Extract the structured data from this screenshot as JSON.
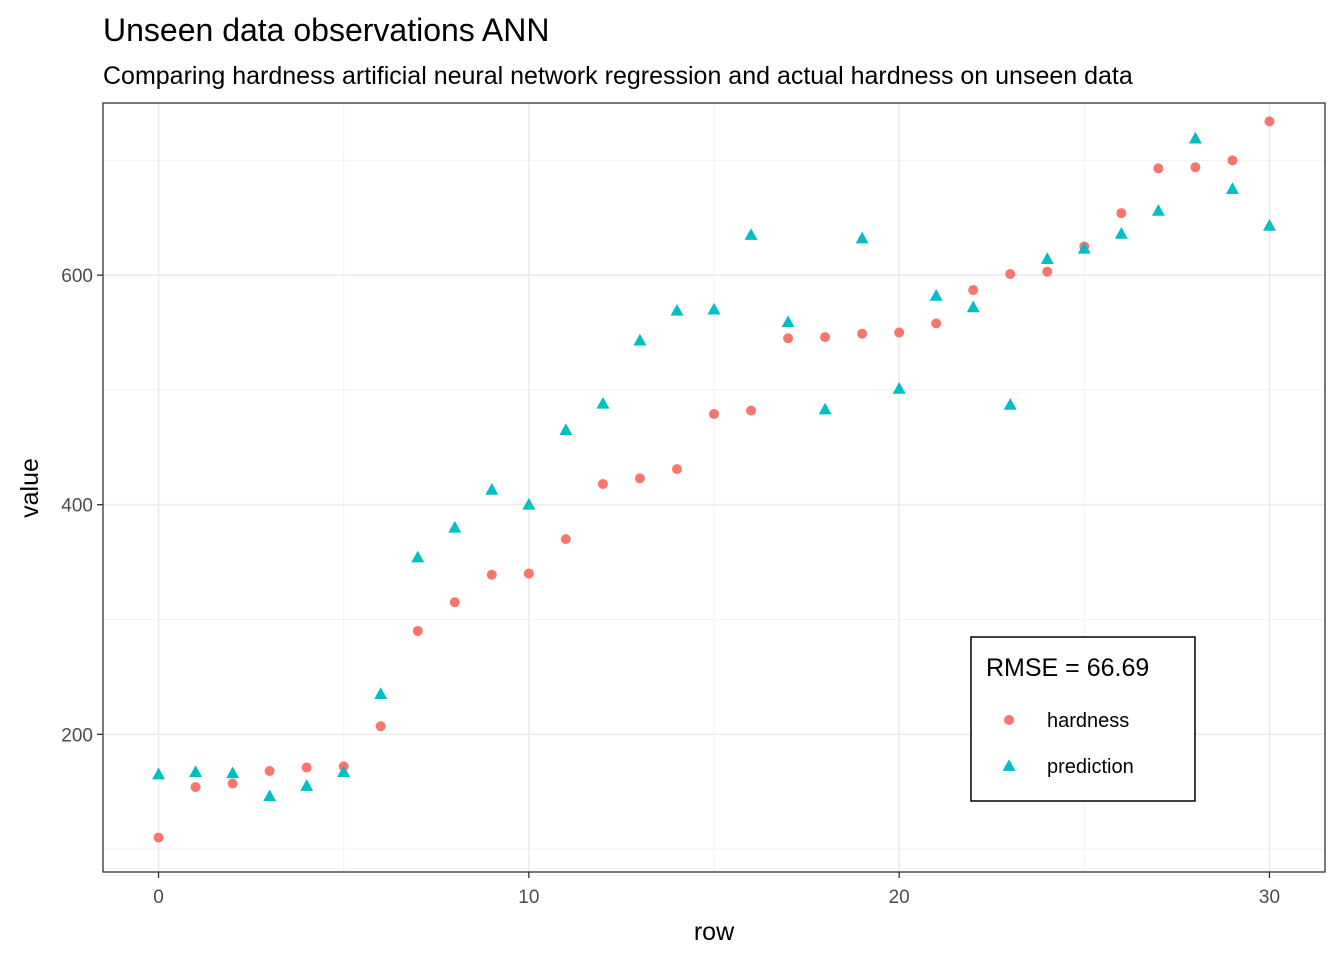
{
  "chart_data": {
    "type": "scatter",
    "title": "Unseen data observations ANN",
    "subtitle": "Comparing hardness artificial neural network regression and actual hardness on unseen data",
    "xlabel": "row",
    "ylabel": "value",
    "xlim": [
      -1.5,
      31.5
    ],
    "ylim": [
      80,
      750
    ],
    "x_ticks": [
      0,
      10,
      20,
      30
    ],
    "y_ticks": [
      200,
      400,
      600
    ],
    "y_minor_ticks": [
      100,
      300,
      500,
      700
    ],
    "x_minor_ticks": [
      5,
      15,
      25
    ],
    "grid": true,
    "legend_position": "bottom-right inside",
    "legend_title": "RMSE =  66.69",
    "x": [
      0,
      1,
      2,
      3,
      4,
      5,
      6,
      7,
      8,
      9,
      10,
      11,
      12,
      13,
      14,
      15,
      16,
      17,
      18,
      19,
      20,
      21,
      22,
      23,
      24,
      25,
      26,
      27,
      28,
      29,
      30
    ],
    "series": [
      {
        "name": "hardness",
        "marker": "circle",
        "color": "#F8766D",
        "values": [
          110,
          154,
          157,
          168,
          171,
          172,
          207,
          290,
          315,
          339,
          340,
          370,
          418,
          423,
          431,
          479,
          482,
          545,
          546,
          549,
          550,
          558,
          587,
          601,
          603,
          625,
          654,
          693,
          694,
          700,
          734
        ]
      },
      {
        "name": "prediction",
        "marker": "triangle",
        "color": "#00BFC4",
        "values": [
          165,
          167,
          166,
          146,
          155,
          167,
          235,
          354,
          380,
          413,
          400,
          465,
          488,
          543,
          569,
          570,
          635,
          559,
          483,
          632,
          501,
          582,
          572,
          487,
          614,
          623,
          636,
          656,
          719,
          675,
          643
        ]
      }
    ]
  }
}
